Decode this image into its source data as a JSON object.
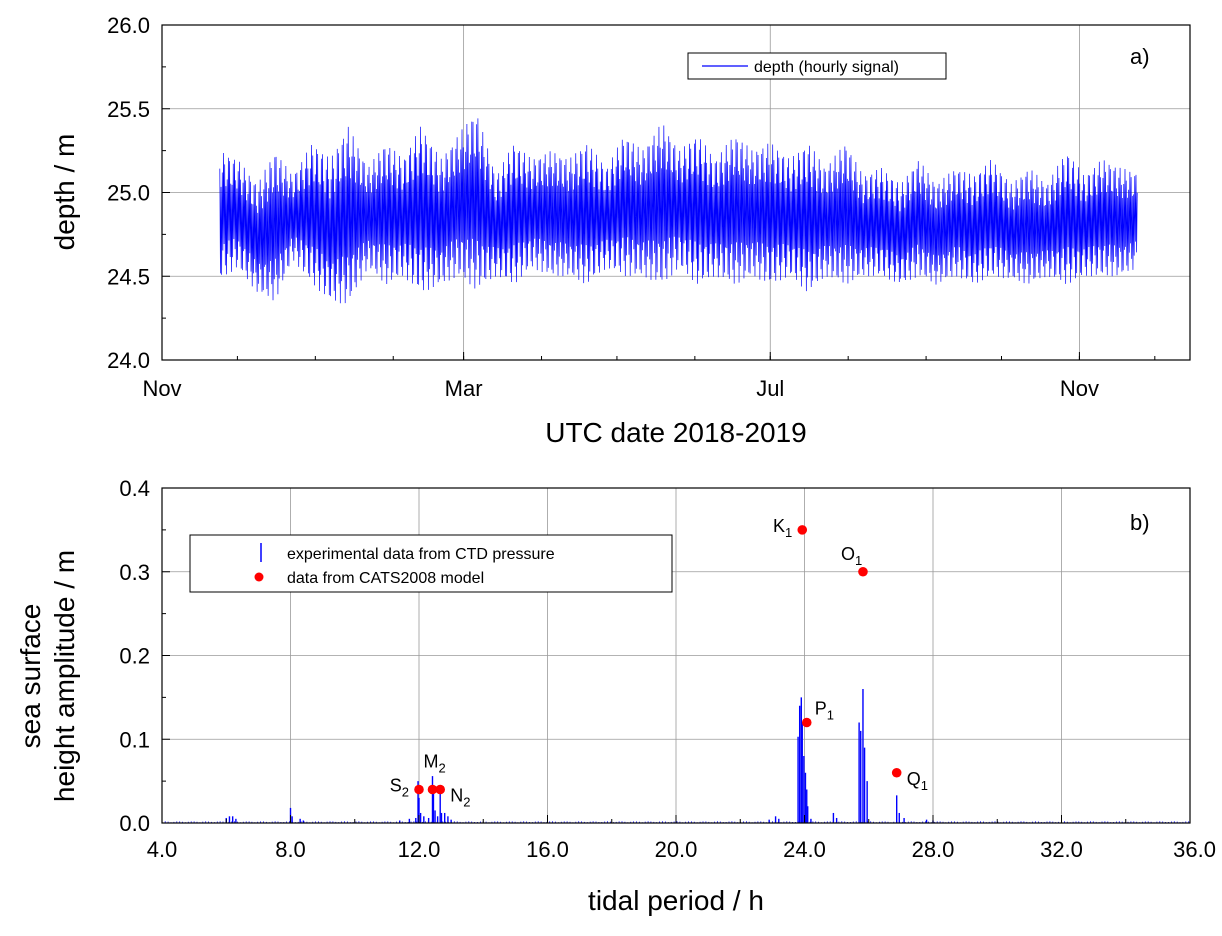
{
  "chart_data": [
    {
      "panel": "a)",
      "type": "line",
      "xlabel": "UTC date 2018-2019",
      "ylabel": "depth / m",
      "x_range": [
        "2018-11-01",
        "2019-12-15"
      ],
      "ylim": [
        24.0,
        26.0
      ],
      "x_ticks": [
        {
          "date": "2018-11-01",
          "label": "Nov"
        },
        {
          "date": "2019-03-01",
          "label": "Mar"
        },
        {
          "date": "2019-07-01",
          "label": "Jul"
        },
        {
          "date": "2019-11-01",
          "label": "Nov"
        }
      ],
      "y_ticks": [
        24.0,
        24.5,
        25.0,
        25.5,
        26.0
      ],
      "y_tick_labels": [
        "24.0",
        "24.5",
        "25.0",
        "25.5",
        "26.0"
      ],
      "grid": true,
      "legend": {
        "position": "top-right",
        "label": "depth (hourly signal)"
      },
      "series": [
        {
          "name": "depth (hourly signal)",
          "color": "#0000ff",
          "date_range": [
            "2018-11-24",
            "2019-11-24"
          ],
          "mean": 24.82,
          "envelope_dates": [
            "2018-11-24",
            "2018-12-01",
            "2018-12-09",
            "2018-12-16",
            "2018-12-23",
            "2018-12-31",
            "2019-01-07",
            "2019-01-14",
            "2019-01-22",
            "2019-01-29",
            "2019-02-05",
            "2019-02-12",
            "2019-02-20",
            "2019-02-27",
            "2019-03-06",
            "2019-03-14",
            "2019-03-21",
            "2019-03-28",
            "2019-04-05",
            "2019-04-12",
            "2019-04-19",
            "2019-04-27",
            "2019-05-04",
            "2019-05-11",
            "2019-05-19",
            "2019-05-26",
            "2019-06-02",
            "2019-06-09",
            "2019-06-17",
            "2019-06-24",
            "2019-07-01",
            "2019-07-09",
            "2019-07-16",
            "2019-07-23",
            "2019-07-31",
            "2019-08-07",
            "2019-08-14",
            "2019-08-22",
            "2019-08-29",
            "2019-09-05",
            "2019-09-13",
            "2019-09-20",
            "2019-09-27",
            "2019-10-05",
            "2019-10-12",
            "2019-10-19",
            "2019-10-27",
            "2019-11-03",
            "2019-11-10",
            "2019-11-17",
            "2019-11-24"
          ],
          "envelope_max": [
            25.25,
            25.2,
            25.05,
            25.25,
            25.1,
            25.3,
            25.2,
            25.4,
            25.15,
            25.3,
            25.2,
            25.4,
            25.2,
            25.35,
            25.49,
            25.1,
            25.3,
            25.2,
            25.25,
            25.2,
            25.3,
            25.15,
            25.35,
            25.25,
            25.42,
            25.25,
            25.35,
            25.2,
            25.35,
            25.25,
            25.3,
            25.2,
            25.3,
            25.15,
            25.3,
            25.1,
            25.15,
            25.05,
            25.2,
            25.05,
            25.15,
            25.1,
            25.2,
            25.05,
            25.15,
            25.05,
            25.25,
            25.1,
            25.2,
            25.15,
            25.12
          ],
          "envelope_min": [
            24.48,
            24.55,
            24.4,
            24.35,
            24.6,
            24.45,
            24.35,
            24.33,
            24.55,
            24.45,
            24.5,
            24.4,
            24.45,
            24.5,
            24.42,
            24.5,
            24.45,
            24.55,
            24.5,
            24.5,
            24.45,
            24.55,
            24.5,
            24.5,
            24.45,
            24.55,
            24.45,
            24.5,
            24.45,
            24.5,
            24.45,
            24.5,
            24.4,
            24.5,
            24.45,
            24.5,
            24.5,
            24.45,
            24.5,
            24.45,
            24.5,
            24.45,
            24.5,
            24.48,
            24.45,
            24.5,
            24.45,
            24.5,
            24.5,
            24.5,
            24.55
          ]
        }
      ]
    },
    {
      "panel": "b)",
      "type": "scatter",
      "xlabel": "tidal period / h",
      "ylabel_lines": [
        "sea surface",
        "height amplitude / m"
      ],
      "xlim": [
        4.0,
        36.0
      ],
      "ylim": [
        0.0,
        0.4
      ],
      "x_ticks": [
        4.0,
        8.0,
        12.0,
        16.0,
        20.0,
        24.0,
        28.0,
        32.0,
        36.0
      ],
      "x_tick_labels": [
        "4.0",
        "8.0",
        "12.0",
        "16.0",
        "20.0",
        "24.0",
        "28.0",
        "32.0",
        "36.0"
      ],
      "y_ticks": [
        0.0,
        0.1,
        0.2,
        0.3,
        0.4
      ],
      "y_tick_labels": [
        "0.0",
        "0.1",
        "0.2",
        "0.3",
        "0.4"
      ],
      "grid": true,
      "legend": {
        "position": "top-left",
        "entries": [
          {
            "label": "experimental data from CTD pressure",
            "marker": "bar",
            "color": "#0000ff"
          },
          {
            "label": "data from CATS2008 model",
            "marker": "dot",
            "color": "#ff0000"
          }
        ]
      },
      "series": [
        {
          "name": "experimental data from CTD pressure",
          "color": "#0000ff",
          "x": [
            6.0,
            6.1,
            6.2,
            6.3,
            8.0,
            8.05,
            8.3,
            8.4,
            11.4,
            11.7,
            11.9,
            11.97,
            12.0,
            12.05,
            12.15,
            12.3,
            12.42,
            12.45,
            12.5,
            12.58,
            12.66,
            12.7,
            12.8,
            12.9,
            13.0,
            22.9,
            23.1,
            23.2,
            23.8,
            23.85,
            23.9,
            23.93,
            23.98,
            24.03,
            24.07,
            24.1,
            24.2,
            24.9,
            25.0,
            25.7,
            25.75,
            25.82,
            25.87,
            25.95,
            26.87,
            26.95,
            27.1,
            27.8,
            28.0
          ],
          "y": [
            0.006,
            0.008,
            0.008,
            0.005,
            0.018,
            0.008,
            0.005,
            0.003,
            0.003,
            0.005,
            0.006,
            0.05,
            0.03,
            0.012,
            0.008,
            0.006,
            0.056,
            0.045,
            0.015,
            0.008,
            0.035,
            0.012,
            0.012,
            0.008,
            0.004,
            0.004,
            0.008,
            0.005,
            0.103,
            0.14,
            0.15,
            0.12,
            0.08,
            0.06,
            0.04,
            0.02,
            0.005,
            0.012,
            0.006,
            0.12,
            0.11,
            0.16,
            0.09,
            0.05,
            0.033,
            0.012,
            0.006,
            0.004,
            0.003
          ]
        },
        {
          "name": "data from CATS2008 model",
          "color": "#ff0000",
          "points": [
            {
              "x": 12.0,
              "y": 0.04,
              "label": "S",
              "sub": "2",
              "pos": "left"
            },
            {
              "x": 12.42,
              "y": 0.04,
              "label": "M",
              "sub": "2",
              "pos": "top"
            },
            {
              "x": 12.66,
              "y": 0.04,
              "label": "N",
              "sub": "2",
              "pos": "right"
            },
            {
              "x": 23.93,
              "y": 0.35,
              "label": "K",
              "sub": "1",
              "pos": "left"
            },
            {
              "x": 24.07,
              "y": 0.12,
              "label": "P",
              "sub": "1",
              "pos": "top-right"
            },
            {
              "x": 25.82,
              "y": 0.3,
              "label": "O",
              "sub": "1",
              "pos": "top-left"
            },
            {
              "x": 26.87,
              "y": 0.06,
              "label": "Q",
              "sub": "1",
              "pos": "right"
            }
          ]
        }
      ]
    }
  ]
}
